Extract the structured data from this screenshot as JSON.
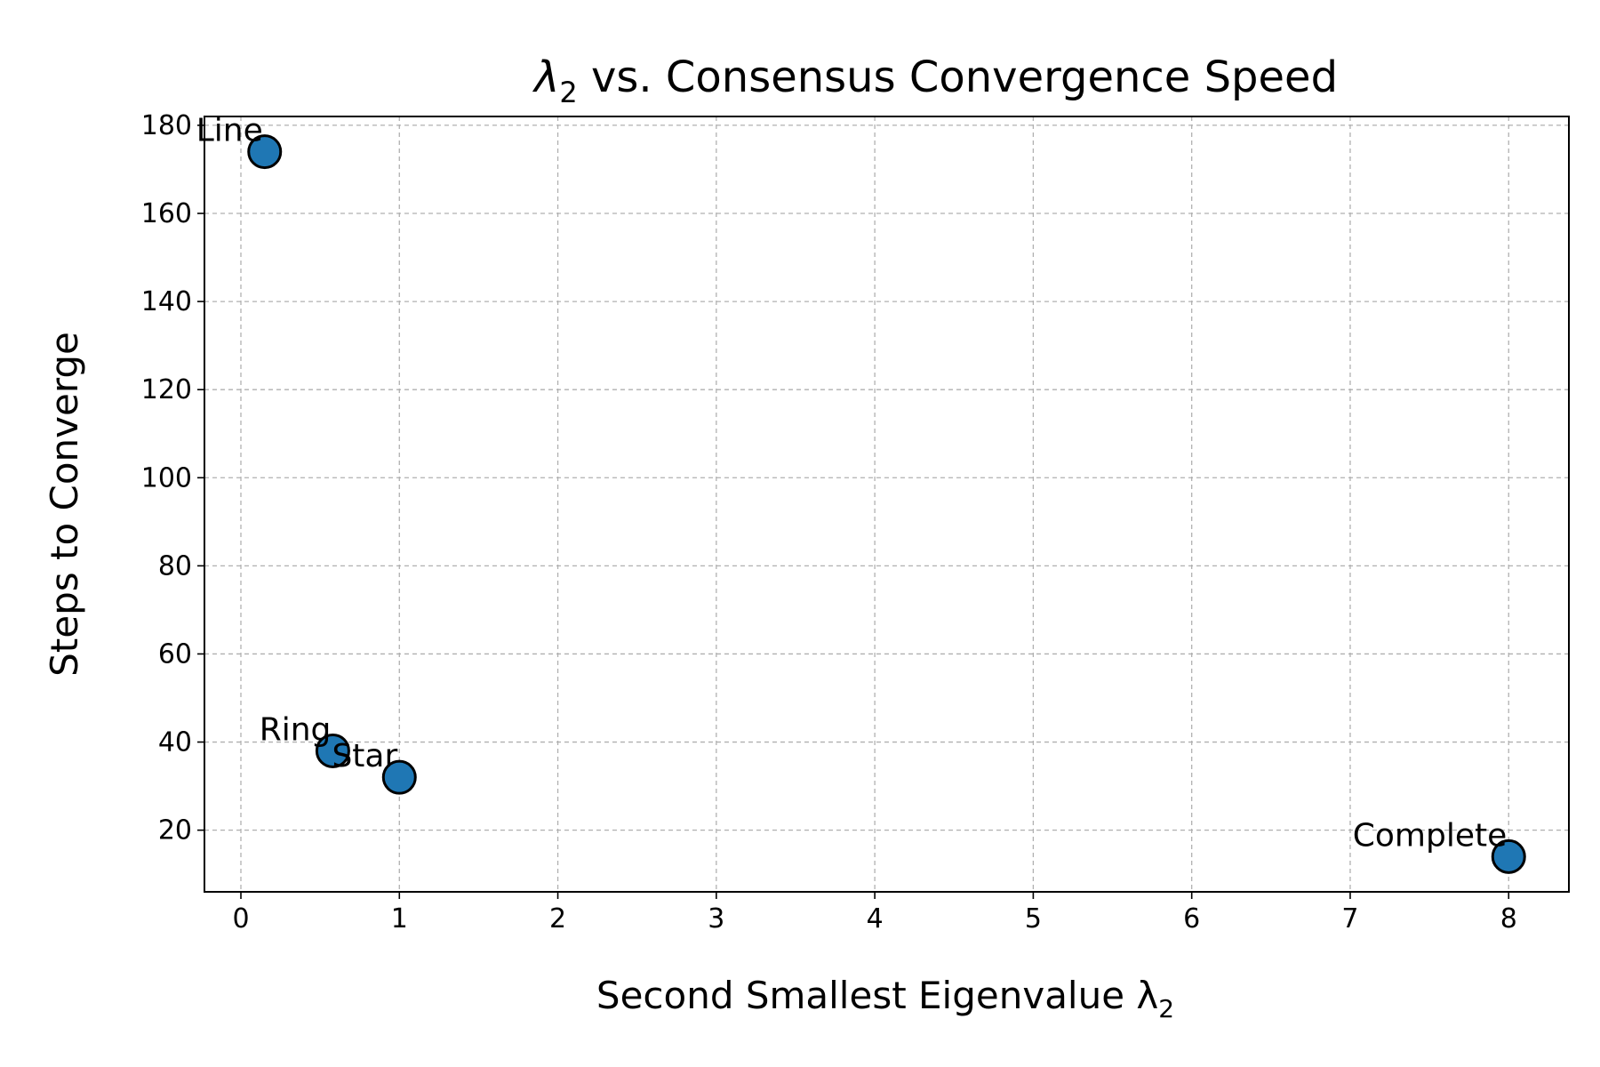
{
  "chart_data": {
    "type": "scatter",
    "title_main": "λ",
    "title_sub": "2",
    "title_rest": " vs. Consensus Convergence Speed",
    "xlabel_main": "Second Smallest Eigenvalue λ",
    "xlabel_sub": "2",
    "ylabel": "Steps to Converge",
    "xlim": [
      -0.23,
      8.38
    ],
    "ylim": [
      6,
      182
    ],
    "xticks": [
      0,
      1,
      2,
      3,
      4,
      5,
      6,
      7,
      8
    ],
    "yticks": [
      20,
      40,
      60,
      80,
      100,
      120,
      140,
      160,
      180
    ],
    "grid": true,
    "points": [
      {
        "label": "Line",
        "x": 0.15,
        "y": 174
      },
      {
        "label": "Ring",
        "x": 0.58,
        "y": 38
      },
      {
        "label": "Star",
        "x": 1.0,
        "y": 32
      },
      {
        "label": "Complete",
        "x": 8.0,
        "y": 14
      }
    ],
    "marker_color": "#1f77b4",
    "marker_edge_color": "#000000"
  }
}
